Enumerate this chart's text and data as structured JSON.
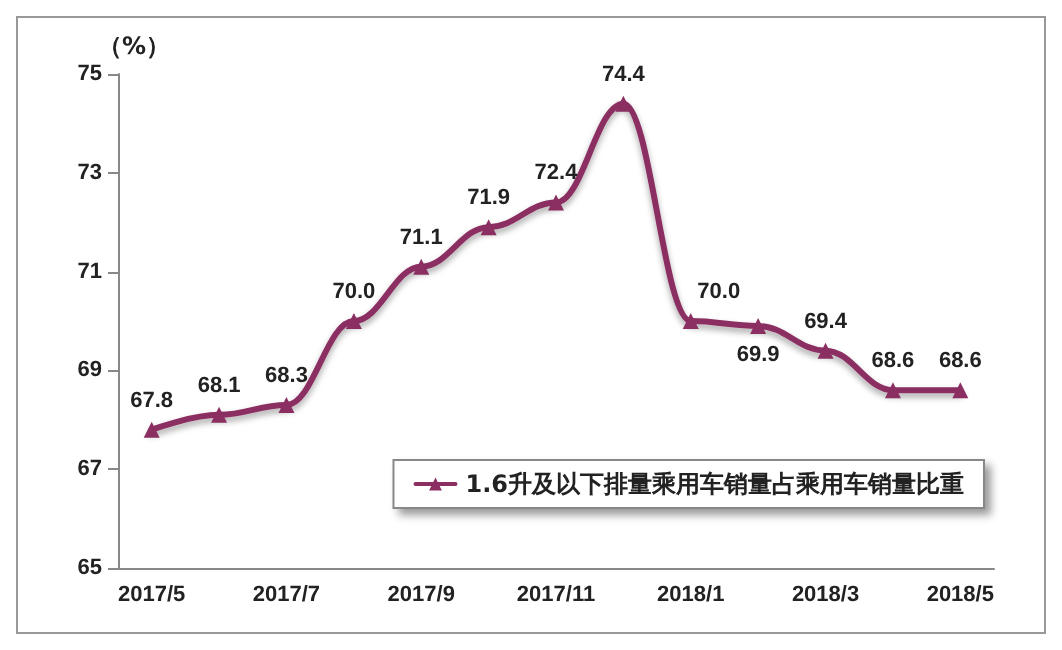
{
  "chart_data": {
    "type": "line",
    "ylabel": "（%）",
    "categories": [
      "2017/5",
      null,
      "2017/7",
      null,
      "2017/9",
      null,
      "2017/11",
      null,
      "2018/1",
      null,
      "2018/3",
      null,
      "2018/5"
    ],
    "series": [
      {
        "name": "1.6升及以下排量乘用车销量占乘用车销量比重",
        "color": "#8b2f62",
        "values": [
          67.8,
          68.1,
          68.3,
          70.0,
          71.1,
          71.9,
          72.4,
          74.4,
          70.0,
          69.9,
          69.4,
          68.6,
          68.6
        ],
        "value_labels": [
          "67.8",
          "68.1",
          "68.3",
          "70.0",
          "71.1",
          "71.9",
          "72.4",
          "74.4",
          "70.0",
          "69.9",
          "69.4",
          "68.6",
          "68.6"
        ]
      }
    ],
    "ylim": [
      65,
      75
    ],
    "yticks": [
      65,
      67,
      69,
      71,
      73,
      75
    ],
    "grid": false,
    "legend": "bottom right",
    "marker": "triangle",
    "line_style": "solid"
  }
}
